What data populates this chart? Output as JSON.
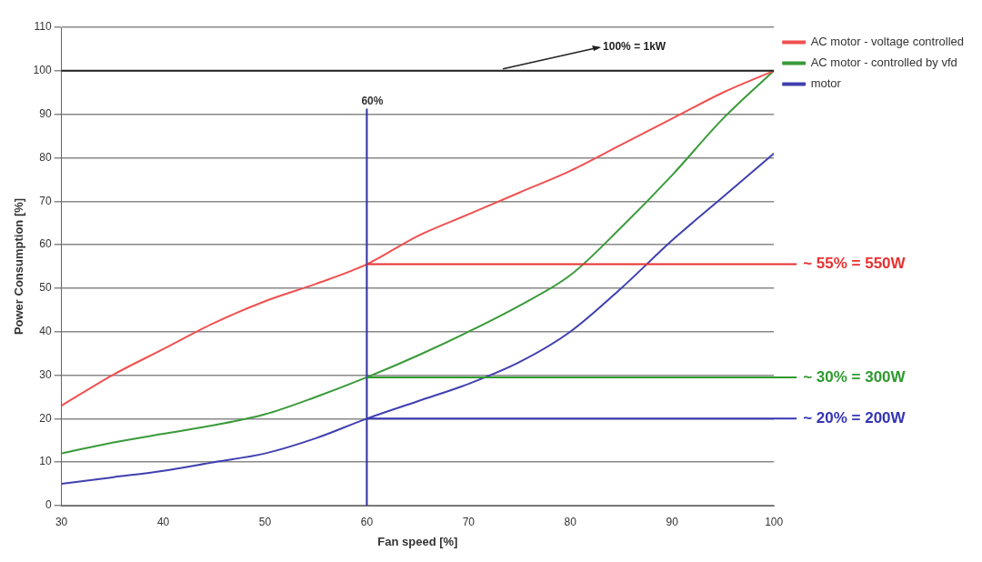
{
  "chart_data": {
    "type": "line",
    "xlabel": "Fan speed [%]",
    "ylabel": "Power Consumption [%]",
    "x": [
      30,
      35,
      40,
      45,
      50,
      55,
      60,
      65,
      70,
      75,
      80,
      85,
      90,
      95,
      100
    ],
    "series": [
      {
        "name": "AC motor - voltage controlled",
        "color": "#f05050",
        "values": [
          23,
          30,
          36,
          42,
          47,
          51,
          55.5,
          62,
          67,
          72,
          77,
          83,
          89,
          95,
          100
        ]
      },
      {
        "name": "AC motor - controlled by vfd",
        "color": "#3a9a3a",
        "values": [
          12,
          14.5,
          16.5,
          18.5,
          21,
          25,
          29.5,
          34.5,
          40,
          46,
          53,
          64,
          76,
          89,
          100
        ]
      },
      {
        "name": "motor",
        "color": "#4040b0",
        "values": [
          5,
          6.5,
          8,
          10,
          12,
          15.5,
          20,
          24,
          28,
          33,
          40,
          50,
          61,
          71,
          81
        ]
      }
    ],
    "xlim": [
      30,
      100
    ],
    "xticks": [
      30,
      40,
      50,
      60,
      70,
      80,
      90,
      100
    ],
    "ylim": [
      0,
      110
    ],
    "yticks": [
      0,
      10,
      20,
      30,
      40,
      50,
      60,
      70,
      80,
      90,
      100,
      110
    ],
    "ref_lines": [
      {
        "axis": "y",
        "value": 100,
        "label": "100% = 1kW",
        "color": "#222222"
      },
      {
        "axis": "x",
        "value": 60,
        "label": "60%",
        "color": "#3030a0"
      },
      {
        "axis": "y",
        "value": 55.5,
        "label": "~ 55% = 550W",
        "color": "#e83030"
      },
      {
        "axis": "y",
        "value": 29.5,
        "label": "~ 30% = 300W",
        "color": "#2e9a2e"
      },
      {
        "axis": "y",
        "value": 20,
        "label": "~ 20% = 200W",
        "color": "#3434b4"
      }
    ],
    "grid": "y",
    "legend": "top right",
    "marker": "none",
    "line_style": "solid"
  }
}
